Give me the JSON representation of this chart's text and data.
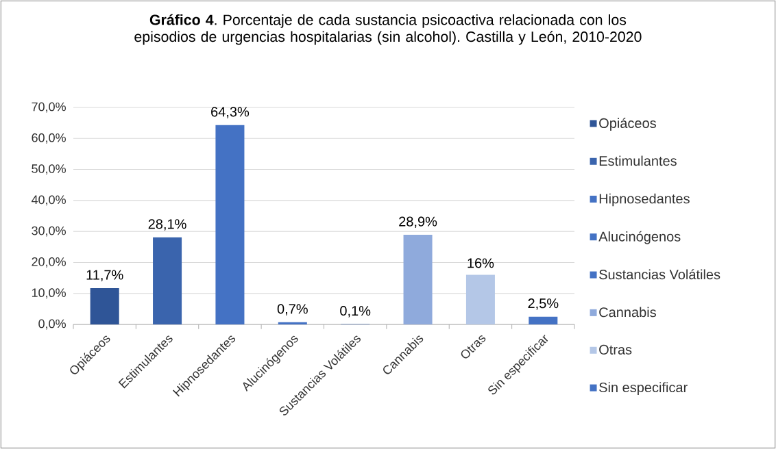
{
  "chart_data": {
    "type": "bar",
    "title": "**Gráfico 4**. Porcentaje de cada sustancia psicoactiva relacionada con los episodios de urgencias hospitalarias (sin alcohol). Castilla y León, 2010-2020",
    "categories": [
      "Opiáceos",
      "Estimulantes",
      "Hipnosedantes",
      "Alucinógenos",
      "Sustancias Volátiles",
      "Cannabis",
      "Otras",
      "Sin especificar"
    ],
    "series": [
      {
        "name": "Opiáceos",
        "color": "#2f5597",
        "values": [
          11.7,
          null,
          null,
          null,
          null,
          null,
          null,
          null
        ],
        "value_labels": [
          "11,7%",
          null,
          null,
          null,
          null,
          null,
          null,
          null
        ]
      },
      {
        "name": "Estimulantes",
        "color": "#3a64ad",
        "values": [
          null,
          28.1,
          null,
          null,
          null,
          null,
          null,
          null
        ],
        "value_labels": [
          null,
          "28,1%",
          null,
          null,
          null,
          null,
          null,
          null
        ]
      },
      {
        "name": "Hipnosedantes",
        "color": "#4472c4",
        "values": [
          null,
          null,
          64.3,
          null,
          null,
          null,
          null,
          null
        ],
        "value_labels": [
          null,
          null,
          "64,3%",
          null,
          null,
          null,
          null,
          null
        ]
      },
      {
        "name": "Alucinógenos",
        "color": "#4472c4",
        "values": [
          null,
          null,
          null,
          0.7,
          null,
          null,
          null,
          null
        ],
        "value_labels": [
          null,
          null,
          null,
          "0,7%",
          null,
          null,
          null,
          null
        ]
      },
      {
        "name": "Sustancias Volátiles",
        "color": "#4472c4",
        "values": [
          null,
          null,
          null,
          null,
          0.1,
          null,
          null,
          null
        ],
        "value_labels": [
          null,
          null,
          null,
          null,
          "0,1%",
          null,
          null,
          null
        ]
      },
      {
        "name": "Cannabis",
        "color": "#8faadc",
        "values": [
          null,
          null,
          null,
          null,
          null,
          28.9,
          null,
          null
        ],
        "value_labels": [
          null,
          null,
          null,
          null,
          null,
          "28,9%",
          null,
          null
        ]
      },
      {
        "name": "Otras",
        "color": "#b4c7e7",
        "values": [
          null,
          null,
          null,
          null,
          null,
          null,
          16,
          null
        ],
        "value_labels": [
          null,
          null,
          null,
          null,
          null,
          null,
          "16%",
          null
        ]
      },
      {
        "name": "Sin especificar",
        "color": "#4472c4",
        "values": [
          null,
          null,
          null,
          null,
          null,
          null,
          null,
          2.5
        ],
        "value_labels": [
          null,
          null,
          null,
          null,
          null,
          null,
          null,
          "2,5%"
        ]
      }
    ],
    "ylim": [
      0,
      70
    ],
    "yticks": [
      {
        "value": 0,
        "label": "0,0%"
      },
      {
        "value": 10,
        "label": "10,0%"
      },
      {
        "value": 20,
        "label": "20,0%"
      },
      {
        "value": 30,
        "label": "30,0%"
      },
      {
        "value": 40,
        "label": "40,0%"
      },
      {
        "value": 50,
        "label": "50,0%"
      },
      {
        "value": 60,
        "label": "60,0%"
      },
      {
        "value": 70,
        "label": "70,0%"
      }
    ],
    "grid": "y",
    "legend": "right"
  }
}
